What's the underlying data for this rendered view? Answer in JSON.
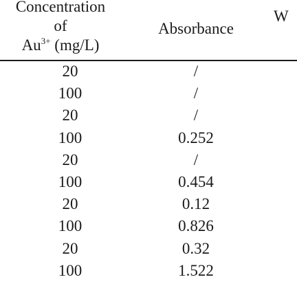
{
  "table": {
    "headers": {
      "concentration_line1": "Concentration",
      "concentration_line2": "of",
      "concentration_line3_base": "Au",
      "concentration_line3_sup": "3+",
      "concentration_line3_unit": " (mg/L)",
      "absorbance": "Absorbance",
      "third_column_partial": "W"
    },
    "rows": [
      {
        "concentration": "20",
        "absorbance": "/"
      },
      {
        "concentration": "100",
        "absorbance": "/"
      },
      {
        "concentration": "20",
        "absorbance": "/"
      },
      {
        "concentration": "100",
        "absorbance": "0.252"
      },
      {
        "concentration": "20",
        "absorbance": "/"
      },
      {
        "concentration": "100",
        "absorbance": "0.454"
      },
      {
        "concentration": "20",
        "absorbance": "0.12"
      },
      {
        "concentration": "100",
        "absorbance": "0.826"
      },
      {
        "concentration": "20",
        "absorbance": "0.32"
      },
      {
        "concentration": "100",
        "absorbance": "1.522"
      }
    ]
  }
}
